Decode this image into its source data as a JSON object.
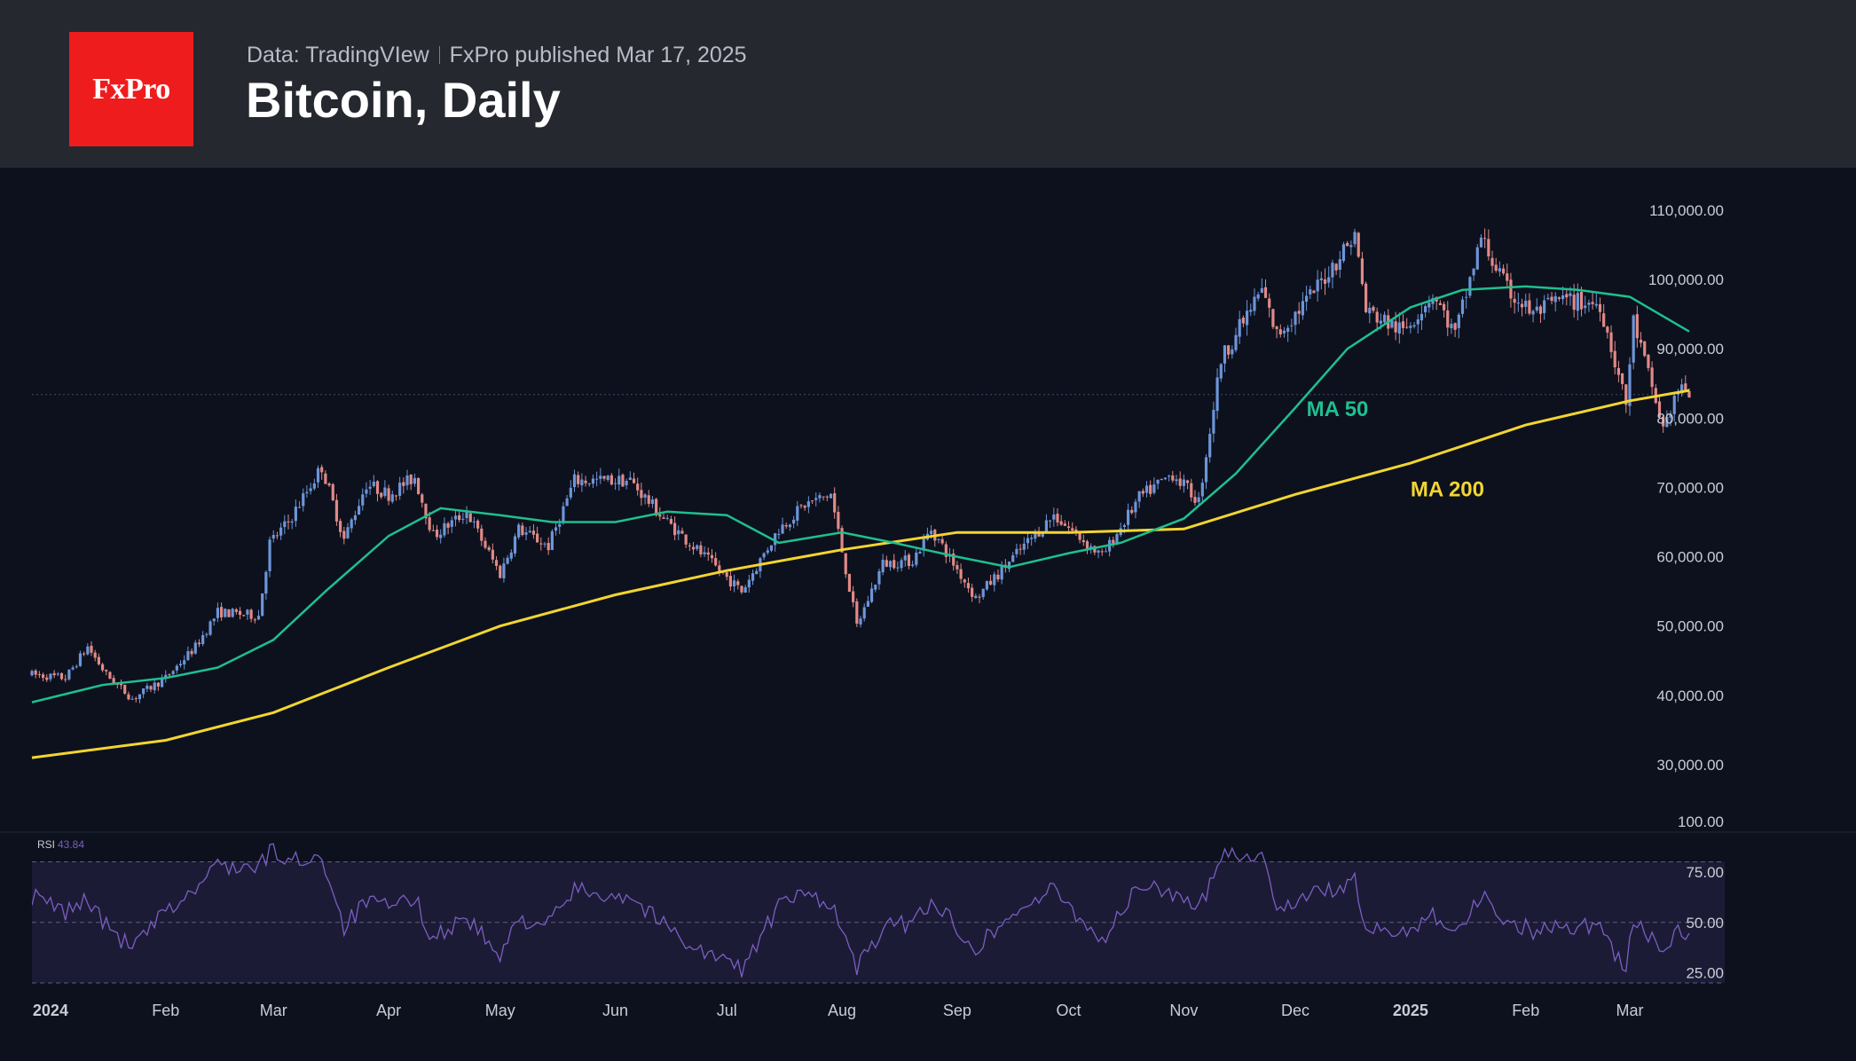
{
  "header": {
    "logo_text": "FxPro",
    "data_source": "Data: TradingVIew",
    "published": "FxPro published Mar 17, 2025",
    "title": "Bitcoin, Daily"
  },
  "colors": {
    "background": "#0d111d",
    "header_bg": "#262830",
    "logo_bg": "#ee1c1c",
    "candle_up": "#6d95d8",
    "candle_down": "#e18a87",
    "ma50": "#1fbf8f",
    "ma200": "#f2d531",
    "rsi_line": "#7b5ec4",
    "rsi_band": "#1c1b35"
  },
  "chart_data": [
    {
      "type": "candlestick",
      "title": "Bitcoin, Daily",
      "ylim": [
        20000,
        110000
      ],
      "y_ticks": [
        "110,000.00",
        "100,000.00",
        "90,000.00",
        "80,000.00",
        "70,000.00",
        "60,000.00",
        "50,000.00",
        "40,000.00",
        "30,000.00"
      ],
      "y_tick_values": [
        110000,
        100000,
        90000,
        80000,
        70000,
        60000,
        50000,
        40000,
        30000
      ],
      "x_ticks": [
        "2024",
        "Feb",
        "Mar",
        "Apr",
        "May",
        "Jun",
        "Jul",
        "Aug",
        "Sep",
        "Oct",
        "Nov",
        "Dec",
        "2025",
        "Feb",
        "Mar"
      ],
      "x_tick_dates": [
        "2024-01-01",
        "2024-02-01",
        "2024-03-01",
        "2024-04-01",
        "2024-05-01",
        "2024-06-01",
        "2024-07-01",
        "2024-08-01",
        "2024-09-01",
        "2024-10-01",
        "2024-11-01",
        "2024-12-01",
        "2025-01-01",
        "2025-02-01",
        "2025-03-01"
      ],
      "x_range": [
        "2023-12-27",
        "2025-03-17"
      ],
      "last_price": 83400,
      "price_path": [
        [
          "2023-12-27",
          43000
        ],
        [
          "2024-01-05",
          42500
        ],
        [
          "2024-01-11",
          47000
        ],
        [
          "2024-01-16",
          43000
        ],
        [
          "2024-01-23",
          39500
        ],
        [
          "2024-02-01",
          42500
        ],
        [
          "2024-02-09",
          47000
        ],
        [
          "2024-02-15",
          52000
        ],
        [
          "2024-02-26",
          51500
        ],
        [
          "2024-02-29",
          62000
        ],
        [
          "2024-03-05",
          65000
        ],
        [
          "2024-03-14",
          73000
        ],
        [
          "2024-03-20",
          62500
        ],
        [
          "2024-03-26",
          70500
        ],
        [
          "2024-04-01",
          69000
        ],
        [
          "2024-04-08",
          71500
        ],
        [
          "2024-04-13",
          63000
        ],
        [
          "2024-04-22",
          66500
        ],
        [
          "2024-05-01",
          57500
        ],
        [
          "2024-05-06",
          64000
        ],
        [
          "2024-05-14",
          61500
        ],
        [
          "2024-05-21",
          71000
        ],
        [
          "2024-06-05",
          71000
        ],
        [
          "2024-06-14",
          65500
        ],
        [
          "2024-06-24",
          60500
        ],
        [
          "2024-07-05",
          55000
        ],
        [
          "2024-07-15",
          64000
        ],
        [
          "2024-07-22",
          67500
        ],
        [
          "2024-07-29",
          69000
        ],
        [
          "2024-08-05",
          50000
        ],
        [
          "2024-08-12",
          59000
        ],
        [
          "2024-08-20",
          59500
        ],
        [
          "2024-08-25",
          64000
        ],
        [
          "2024-09-06",
          54000
        ],
        [
          "2024-09-18",
          61000
        ],
        [
          "2024-09-27",
          66000
        ],
        [
          "2024-10-10",
          60000
        ],
        [
          "2024-10-20",
          68500
        ],
        [
          "2024-10-29",
          72000
        ],
        [
          "2024-11-05",
          68000
        ],
        [
          "2024-11-11",
          88500
        ],
        [
          "2024-11-22",
          98500
        ],
        [
          "2024-11-26",
          92000
        ],
        [
          "2024-12-05",
          97500
        ],
        [
          "2024-12-17",
          106500
        ],
        [
          "2024-12-20",
          95500
        ],
        [
          "2024-12-30",
          92500
        ],
        [
          "2025-01-07",
          98000
        ],
        [
          "2025-01-13",
          92000
        ],
        [
          "2025-01-20",
          106000
        ],
        [
          "2025-01-27",
          98500
        ],
        [
          "2025-02-03",
          95000
        ],
        [
          "2025-02-10",
          97000
        ],
        [
          "2025-02-21",
          96500
        ],
        [
          "2025-02-28",
          82000
        ],
        [
          "2025-03-02",
          94000
        ],
        [
          "2025-03-10",
          78500
        ],
        [
          "2025-03-14",
          84000
        ],
        [
          "2025-03-17",
          83400
        ]
      ],
      "series": [
        {
          "name": "MA 50",
          "points": [
            [
              "2023-12-27",
              39000
            ],
            [
              "2024-01-15",
              41500
            ],
            [
              "2024-02-01",
              42500
            ],
            [
              "2024-02-15",
              44000
            ],
            [
              "2024-03-01",
              48000
            ],
            [
              "2024-03-15",
              55000
            ],
            [
              "2024-04-01",
              63000
            ],
            [
              "2024-04-15",
              67000
            ],
            [
              "2024-05-01",
              66000
            ],
            [
              "2024-05-15",
              65000
            ],
            [
              "2024-06-01",
              65000
            ],
            [
              "2024-06-15",
              66500
            ],
            [
              "2024-07-01",
              66000
            ],
            [
              "2024-07-15",
              62000
            ],
            [
              "2024-08-01",
              63500
            ],
            [
              "2024-08-15",
              62000
            ],
            [
              "2024-09-01",
              60000
            ],
            [
              "2024-09-15",
              58500
            ],
            [
              "2024-10-01",
              60500
            ],
            [
              "2024-10-15",
              62000
            ],
            [
              "2024-11-01",
              65500
            ],
            [
              "2024-11-15",
              72000
            ],
            [
              "2024-12-01",
              81500
            ],
            [
              "2024-12-15",
              90000
            ],
            [
              "2025-01-01",
              96000
            ],
            [
              "2025-01-15",
              98500
            ],
            [
              "2025-02-01",
              99000
            ],
            [
              "2025-02-15",
              98500
            ],
            [
              "2025-03-01",
              97500
            ],
            [
              "2025-03-17",
              92500
            ]
          ]
        },
        {
          "name": "MA 200",
          "points": [
            [
              "2023-12-27",
              31000
            ],
            [
              "2024-02-01",
              33500
            ],
            [
              "2024-03-01",
              37500
            ],
            [
              "2024-04-01",
              44000
            ],
            [
              "2024-05-01",
              50000
            ],
            [
              "2024-06-01",
              54500
            ],
            [
              "2024-07-01",
              58000
            ],
            [
              "2024-08-01",
              61000
            ],
            [
              "2024-09-01",
              63500
            ],
            [
              "2024-10-01",
              63500
            ],
            [
              "2024-11-01",
              64000
            ],
            [
              "2024-12-01",
              69000
            ],
            [
              "2025-01-01",
              73500
            ],
            [
              "2025-02-01",
              79000
            ],
            [
              "2025-03-01",
              82500
            ],
            [
              "2025-03-17",
              84000
            ]
          ]
        }
      ],
      "annotations": [
        {
          "text": "MA 50",
          "date": "2024-12-04",
          "value": 80300,
          "color": "#1fbf8f"
        },
        {
          "text": "MA 200",
          "date": "2025-01-01",
          "value": 68700,
          "color": "#f2d531"
        }
      ]
    },
    {
      "type": "line",
      "title": "RSI",
      "label": "RSI",
      "current_value": "43.84",
      "ylim": [
        20,
        100
      ],
      "y_ticks": [
        "100.00",
        "75.00",
        "50.00",
        "25.00"
      ],
      "y_tick_values": [
        100,
        75,
        50,
        25
      ],
      "band": [
        20,
        80
      ],
      "levels": [
        80,
        50,
        20
      ],
      "rsi_path": [
        [
          "2023-12-27",
          63
        ],
        [
          "2024-01-05",
          55
        ],
        [
          "2024-01-11",
          62
        ],
        [
          "2024-01-16",
          48
        ],
        [
          "2024-01-23",
          37
        ],
        [
          "2024-02-01",
          55
        ],
        [
          "2024-02-09",
          66
        ],
        [
          "2024-02-15",
          79
        ],
        [
          "2024-02-26",
          76
        ],
        [
          "2024-02-29",
          86
        ],
        [
          "2024-03-05",
          80
        ],
        [
          "2024-03-14",
          83
        ],
        [
          "2024-03-20",
          48
        ],
        [
          "2024-03-26",
          60
        ],
        [
          "2024-04-01",
          57
        ],
        [
          "2024-04-08",
          62
        ],
        [
          "2024-04-13",
          42
        ],
        [
          "2024-04-22",
          53
        ],
        [
          "2024-05-01",
          32
        ],
        [
          "2024-05-06",
          52
        ],
        [
          "2024-05-14",
          49
        ],
        [
          "2024-05-21",
          66
        ],
        [
          "2024-06-05",
          63
        ],
        [
          "2024-06-14",
          49
        ],
        [
          "2024-06-24",
          36
        ],
        [
          "2024-07-05",
          27
        ],
        [
          "2024-07-15",
          58
        ],
        [
          "2024-07-22",
          64
        ],
        [
          "2024-07-29",
          60
        ],
        [
          "2024-08-05",
          27
        ],
        [
          "2024-08-12",
          47
        ],
        [
          "2024-08-20",
          50
        ],
        [
          "2024-08-25",
          61
        ],
        [
          "2024-09-06",
          38
        ],
        [
          "2024-09-18",
          57
        ],
        [
          "2024-09-27",
          66
        ],
        [
          "2024-10-10",
          41
        ],
        [
          "2024-10-20",
          68
        ],
        [
          "2024-10-29",
          65
        ],
        [
          "2024-11-05",
          55
        ],
        [
          "2024-11-11",
          85
        ],
        [
          "2024-11-22",
          83
        ],
        [
          "2024-11-26",
          58
        ],
        [
          "2024-12-05",
          63
        ],
        [
          "2024-12-17",
          70
        ],
        [
          "2024-12-20",
          46
        ],
        [
          "2024-12-30",
          45
        ],
        [
          "2025-01-07",
          55
        ],
        [
          "2025-01-13",
          45
        ],
        [
          "2025-01-20",
          63
        ],
        [
          "2025-01-27",
          51
        ],
        [
          "2025-02-03",
          46
        ],
        [
          "2025-02-10",
          48
        ],
        [
          "2025-02-21",
          49
        ],
        [
          "2025-02-28",
          25
        ],
        [
          "2025-03-02",
          52
        ],
        [
          "2025-03-10",
          35
        ],
        [
          "2025-03-14",
          46
        ],
        [
          "2025-03-17",
          44
        ]
      ]
    }
  ]
}
